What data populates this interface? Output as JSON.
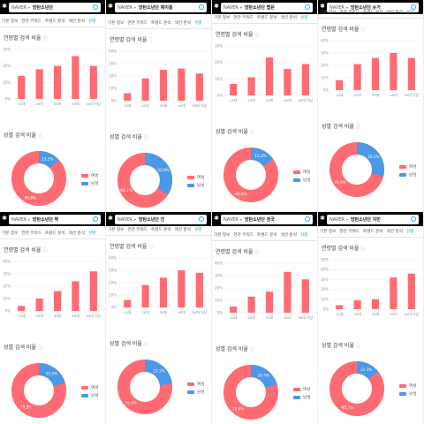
{
  "colors": {
    "bar": "#ff6b72",
    "male": "#4a98e8",
    "female": "#ff6b72",
    "accent": "#27b1c4",
    "grid": "#eeeeee"
  },
  "common": {
    "search_engine": "NAVER",
    "tabs": [
      "기본 정보",
      "연관 키워드",
      "트렌드 분석",
      "섹션 분석",
      "성별"
    ],
    "age_title": "연령별 검색 비율",
    "gender_title": "성별 검색 비율",
    "legend": {
      "female": "여성",
      "male": "남성"
    },
    "age_categories": [
      "10대",
      "20대",
      "30대",
      "40대",
      "50대 이상"
    ]
  },
  "panels": [
    {
      "query": "방탄소년단",
      "chart_data": {
        "type": "bar",
        "categories": [
          "10대",
          "20대",
          "30대",
          "40대",
          "50대 이상"
        ],
        "values": [
          14,
          18,
          20,
          26,
          20
        ],
        "ylim": [
          0,
          30
        ],
        "yticks": [
          "30%",
          "20%",
          "10%",
          "0%"
        ]
      },
      "gender": {
        "female": 86.8,
        "male": 13.2,
        "female_label": "86.8%",
        "male_label": "13.2%"
      }
    },
    {
      "query": "방탄소년단 제이홉",
      "chart_data": {
        "type": "bar",
        "categories": [
          "10대",
          "20대",
          "30대",
          "40대",
          "50대 이상"
        ],
        "values": [
          6,
          18,
          25,
          26,
          22
        ],
        "ylim": [
          0,
          40
        ],
        "yticks": [
          "40%",
          "30%",
          "20%",
          "10%",
          "0%"
        ]
      },
      "gender": {
        "female": 66.1,
        "male": 33.9,
        "female_label": "66.1%",
        "male_label": "33.9%"
      }
    },
    {
      "query": "방탄소년단 랩몬",
      "chart_data": {
        "type": "bar",
        "categories": [
          "10대",
          "20대",
          "30대",
          "40대",
          "50대 이상"
        ],
        "values": [
          7,
          11,
          23,
          16,
          19
        ],
        "ylim": [
          0,
          30
        ],
        "yticks": [
          "30%",
          "20%",
          "10%",
          "0%"
        ]
      },
      "gender": {
        "female": 84.8,
        "male": 15.2,
        "female_label": "84.8%",
        "male_label": "15.2%"
      }
    },
    {
      "query": "방탄소년단 슈가",
      "chart_data": {
        "type": "bar",
        "categories": [
          "10대",
          "20대",
          "30대",
          "40대",
          "50대 이상"
        ],
        "values": [
          8,
          21,
          26,
          30,
          26
        ],
        "ylim": [
          0,
          40
        ],
        "yticks": [
          "40%",
          "30%",
          "20%",
          "10%",
          "0%"
        ]
      },
      "gender": {
        "female": 70.9,
        "male": 29.1,
        "female_label": "70.9%",
        "male_label": "29.1%"
      }
    },
    {
      "query": "방탄소년단 뷔",
      "chart_data": {
        "type": "bar",
        "categories": [
          "10대",
          "20대",
          "30대",
          "40대",
          "50대 이상"
        ],
        "values": [
          4,
          10,
          16,
          24,
          32
        ],
        "ylim": [
          0,
          40
        ],
        "yticks": [
          "40%",
          "30%",
          "20%",
          "10%",
          "0%"
        ]
      },
      "gender": {
        "female": 79.5,
        "male": 20.5,
        "female_label": "79.5%",
        "male_label": "20.5%"
      }
    },
    {
      "query": "방탄소년단 진",
      "chart_data": {
        "type": "bar",
        "categories": [
          "10대",
          "20대",
          "30대",
          "40대",
          "50대 이상"
        ],
        "values": [
          6,
          18,
          24,
          30,
          28
        ],
        "ylim": [
          0,
          40
        ],
        "yticks": [
          "40%",
          "30%",
          "20%",
          "10%",
          "0%"
        ]
      },
      "gender": {
        "female": 76.9,
        "male": 23.1,
        "female_label": "76.9%",
        "male_label": "23.1%"
      }
    },
    {
      "query": "방탄소년단 정국",
      "chart_data": {
        "type": "bar",
        "categories": [
          "10대",
          "20대",
          "30대",
          "40대",
          "50대 이상"
        ],
        "values": [
          5,
          13,
          17,
          33,
          27
        ],
        "ylim": [
          0,
          40
        ],
        "yticks": [
          "40%",
          "30%",
          "20%",
          "10%",
          "0%"
        ]
      },
      "gender": {
        "female": 79.6,
        "male": 20.4,
        "female_label": "79.6%",
        "male_label": "20.4%"
      }
    },
    {
      "query": "방탄소년단 지민",
      "chart_data": {
        "type": "bar",
        "categories": [
          "10대",
          "20대",
          "30대",
          "40대",
          "50대 이상"
        ],
        "values": [
          4,
          9,
          10,
          32,
          36
        ],
        "ylim": [
          0,
          50
        ],
        "yticks": [
          "50%",
          "40%",
          "30%",
          "20%",
          "10%",
          "0%"
        ]
      },
      "gender": {
        "female": 85.7,
        "male": 14.3,
        "female_label": "85.7%",
        "male_label": "14.3%"
      }
    }
  ]
}
